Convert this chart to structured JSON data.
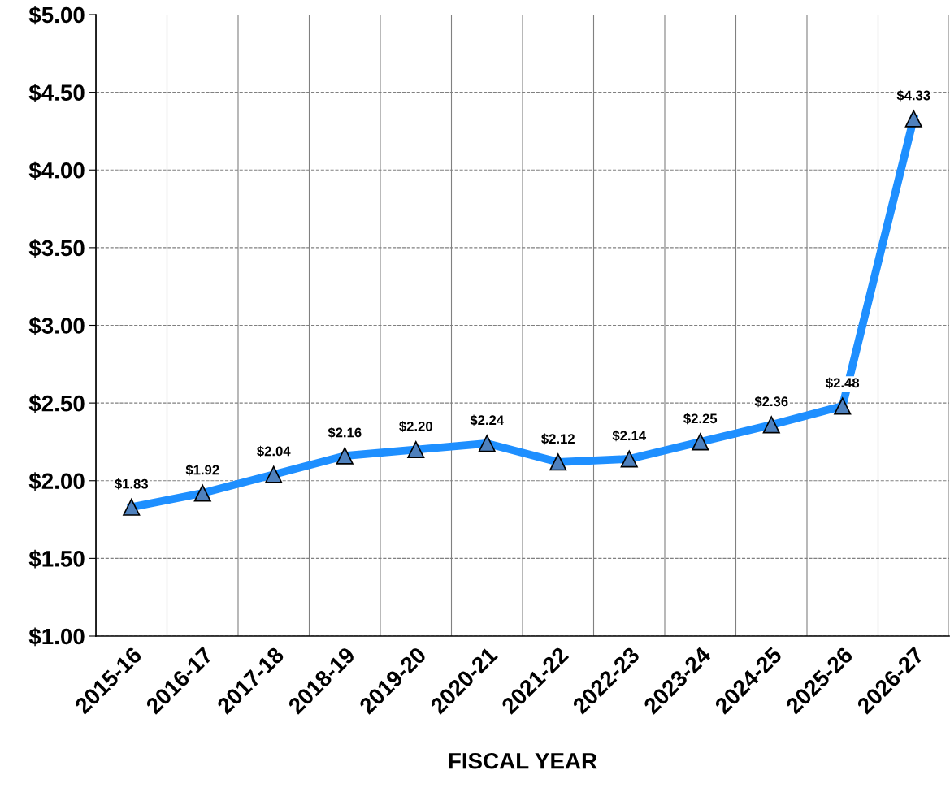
{
  "chart_data": {
    "type": "line",
    "xlabel": "FISCAL YEAR",
    "categories": [
      "2015-16",
      "2016-17",
      "2017-18",
      "2018-19",
      "2019-20",
      "2020-21",
      "2021-22",
      "2022-23",
      "2023-24",
      "2024-25",
      "2025-26",
      "2026-27"
    ],
    "series": [
      {
        "color": "#1e8fff",
        "values": [
          1.83,
          1.92,
          2.04,
          2.16,
          2.2,
          2.24,
          2.12,
          2.14,
          2.25,
          2.36,
          2.48,
          4.33
        ],
        "value_labels": [
          "$1.83",
          "$1.92",
          "$2.04",
          "$2.16",
          "$2.20",
          "$2.24",
          "$2.12",
          "$2.14",
          "$2.25",
          "$2.36",
          "$2.48",
          "$4.33"
        ]
      }
    ],
    "ylim": [
      1,
      5
    ],
    "yticks": [
      {
        "value": 1,
        "label": "$1.00"
      },
      {
        "value": 1.5,
        "label": "$1.50"
      },
      {
        "value": 2,
        "label": "$2.00"
      },
      {
        "value": 2.5,
        "label": "$2.50"
      },
      {
        "value": 3,
        "label": "$3.00"
      },
      {
        "value": 3.5,
        "label": "$3.50"
      },
      {
        "value": 4,
        "label": "$4.00"
      },
      {
        "value": 4.5,
        "label": "$4.50"
      },
      {
        "value": 5,
        "label": "$5.00"
      }
    ],
    "grid": true,
    "marker": "triangle",
    "line_style": "solid"
  }
}
